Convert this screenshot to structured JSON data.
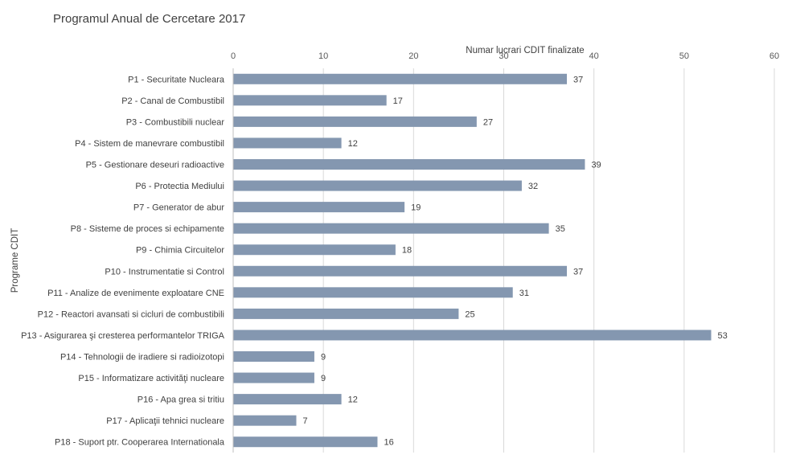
{
  "chart_data": {
    "type": "bar",
    "orientation": "horizontal",
    "title": "Programul Anual de Cercetare 2017",
    "xlabel": "Numar lucrari CDIT finalizate",
    "ylabel": "Programe CDIT",
    "xlim": [
      0,
      60
    ],
    "xticks": [
      0,
      10,
      20,
      30,
      40,
      50,
      60
    ],
    "x_axis_position": "top",
    "grid": true,
    "bar_color": "#8497b0",
    "categories": [
      "P1 - Securitate Nucleara",
      "P2 - Canal de Combustibil",
      "P3 - Combustibili nuclear",
      "P4 - Sistem de manevrare combustibil",
      "P5 - Gestionare deseuri radioactive",
      "P6 - Protectia Mediului",
      "P7 - Generator de abur",
      "P8 - Sisteme de proces si echipamente",
      "P9 - Chimia Circuitelor",
      "P10 - Instrumentatie si Control",
      "P11 - Analize de evenimente exploatare CNE",
      "P12 - Reactori avansati si cicluri de combustibili",
      "P13 - Asigurarea şi cresterea performantelor TRIGA",
      "P14 - Tehnologii de iradiere si radioizotopi",
      "P15 - Informatizare activităţi nucleare",
      "P16 - Apa grea si tritiu",
      "P17 - Aplicaţii tehnici nucleare",
      "P18 - Suport ptr. Cooperarea Internationala"
    ],
    "values": [
      37,
      17,
      27,
      12,
      39,
      32,
      19,
      35,
      18,
      37,
      31,
      25,
      53,
      9,
      9,
      12,
      7,
      16
    ]
  }
}
